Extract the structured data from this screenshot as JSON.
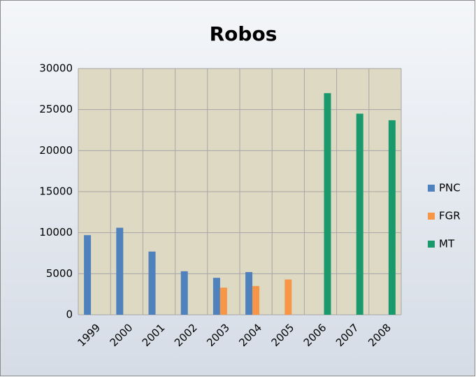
{
  "chart_data": {
    "type": "bar",
    "title": "Robos",
    "categories": [
      "1999",
      "2000",
      "2001",
      "2002",
      "2003",
      "2004",
      "2005",
      "2006",
      "2007",
      "2008"
    ],
    "series": [
      {
        "name": "PNC",
        "color": "#4f81bd",
        "values": [
          9700,
          10600,
          7700,
          5300,
          4500,
          5200,
          null,
          null,
          null,
          null
        ]
      },
      {
        "name": "FGR",
        "color": "#f79646",
        "values": [
          null,
          null,
          null,
          null,
          3300,
          3500,
          4300,
          null,
          null,
          null
        ]
      },
      {
        "name": "MT",
        "color": "#1a9a6c",
        "values": [
          null,
          null,
          null,
          null,
          null,
          null,
          null,
          27000,
          24500,
          23700
        ]
      }
    ],
    "ylim": [
      0,
      30000
    ],
    "yticks": [
      0,
      5000,
      10000,
      15000,
      20000,
      25000,
      30000
    ],
    "grid": true,
    "legend": "right"
  }
}
